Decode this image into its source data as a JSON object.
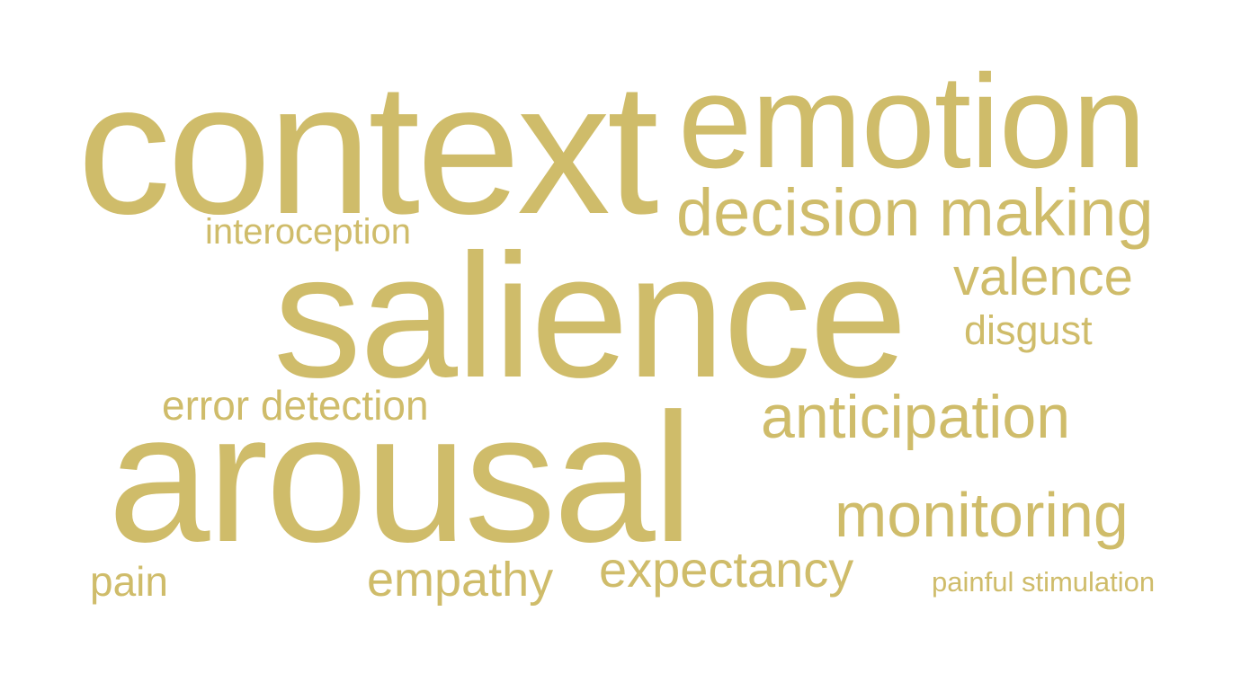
{
  "cloud": {
    "color": "#cfbc6a",
    "background": "#ffffff",
    "words": {
      "context": "context",
      "emotion": "emotion",
      "decision_making": "decision making",
      "interoception": "interoception",
      "salience": "salience",
      "valence": "valence",
      "disgust": "disgust",
      "error_detection": "error detection",
      "anticipation": "anticipation",
      "arousal": "arousal",
      "monitoring": "monitoring",
      "pain": "pain",
      "empathy": "empathy",
      "expectancy": "expectancy",
      "painful_stimulation": "painful stimulation"
    }
  }
}
